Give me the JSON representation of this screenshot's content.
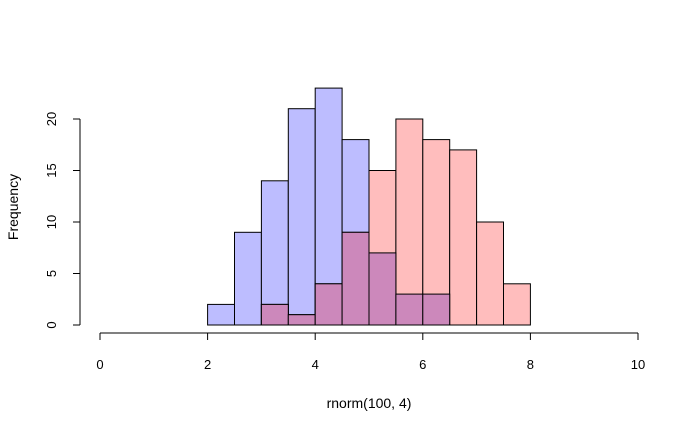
{
  "chart_data": {
    "type": "bar",
    "title": "",
    "xlabel": "rnorm(100, 4)",
    "ylabel": "Frequency",
    "xlim": [
      0,
      10
    ],
    "ylim": [
      0,
      23
    ],
    "x_ticks": [
      0,
      2,
      4,
      6,
      8,
      10
    ],
    "y_ticks": [
      0,
      5,
      10,
      15,
      20
    ],
    "grid": false,
    "series": [
      {
        "color": "#bdbdff",
        "bins": [
          {
            "x0": 2.0,
            "x1": 2.5,
            "count": 2
          },
          {
            "x0": 2.5,
            "x1": 3.0,
            "count": 9
          },
          {
            "x0": 3.0,
            "x1": 3.5,
            "count": 14
          },
          {
            "x0": 3.5,
            "x1": 4.0,
            "count": 21
          },
          {
            "x0": 4.0,
            "x1": 4.5,
            "count": 23
          },
          {
            "x0": 4.5,
            "x1": 5.0,
            "count": 18
          },
          {
            "x0": 5.0,
            "x1": 5.5,
            "count": 7
          },
          {
            "x0": 5.5,
            "x1": 6.0,
            "count": 3
          },
          {
            "x0": 6.0,
            "x1": 6.5,
            "count": 3
          }
        ]
      },
      {
        "color": "#ffbdbd",
        "bins": [
          {
            "x0": 3.0,
            "x1": 3.5,
            "count": 2
          },
          {
            "x0": 3.5,
            "x1": 4.0,
            "count": 1
          },
          {
            "x0": 4.0,
            "x1": 4.5,
            "count": 4
          },
          {
            "x0": 4.5,
            "x1": 5.0,
            "count": 9
          },
          {
            "x0": 5.0,
            "x1": 5.5,
            "count": 15
          },
          {
            "x0": 5.5,
            "x1": 6.0,
            "count": 20
          },
          {
            "x0": 6.0,
            "x1": 6.5,
            "count": 18
          },
          {
            "x0": 6.5,
            "x1": 7.0,
            "count": 17
          },
          {
            "x0": 7.0,
            "x1": 7.5,
            "count": 10
          },
          {
            "x0": 7.5,
            "x1": 8.0,
            "count": 4
          }
        ]
      }
    ],
    "overlap_color": "#cc88bb"
  }
}
